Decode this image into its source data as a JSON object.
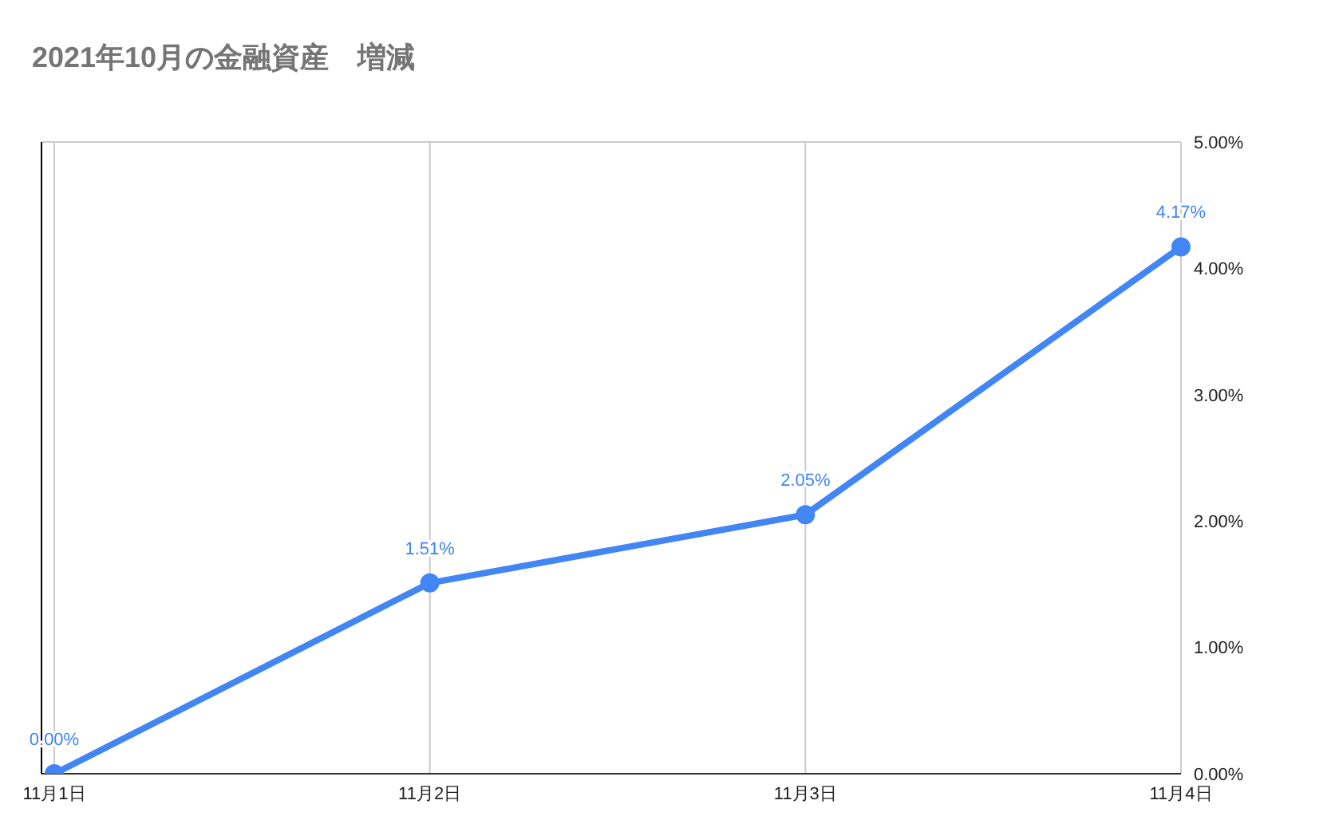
{
  "chart_data": {
    "type": "line",
    "title": "2021年10月の金融資産　増減",
    "categories": [
      "11月1日",
      "11月2日",
      "11月3日",
      "11月4日"
    ],
    "series": [
      {
        "color": "#4285f4",
        "values": [
          0,
          1.51,
          2.05,
          4.17
        ],
        "value_labels": [
          "0.00%",
          "1.51%",
          "2.05%",
          "4.17%"
        ]
      }
    ],
    "ylim": [
      0,
      5
    ],
    "yticks": [
      {
        "value": 0,
        "label": "0.00%"
      },
      {
        "value": 1,
        "label": "1.00%"
      },
      {
        "value": 2,
        "label": "2.00%"
      },
      {
        "value": 3,
        "label": "3.00%"
      },
      {
        "value": 4,
        "label": "4.00%"
      },
      {
        "value": 5,
        "label": "5.00%"
      }
    ],
    "grid": true,
    "marker": "circle",
    "line_style": "solid",
    "legend": false
  }
}
